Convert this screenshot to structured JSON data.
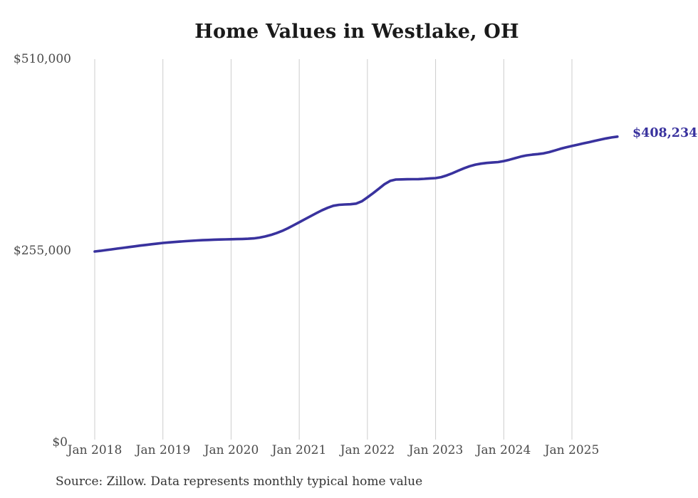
{
  "chart": {
    "title": "Home Values in Westlake, OH",
    "end_label": "$408,234",
    "source": "Source: Zillow. Data represents monthly typical home value",
    "colors": {
      "line": "#39329e",
      "grid": "#cccccc",
      "title_text": "#1a1a1a",
      "axis_text": "#4a4a4a",
      "source_text": "#333333",
      "end_label_text": "#39329e",
      "background": "#ffffff"
    }
  },
  "y_axis": {
    "ticks": [
      "$510,000",
      "$255,000",
      "$0"
    ]
  },
  "x_axis": {
    "ticks": [
      "Jan 2018",
      "Jan 2019",
      "Jan 2020",
      "Jan 2021",
      "Jan 2022",
      "Jan 2023",
      "Jan 2024",
      "Jan 2025"
    ]
  },
  "chart_data": {
    "type": "line",
    "title": "Home Values in Westlake, OH",
    "xlabel": "",
    "ylabel": "",
    "ylim": [
      0,
      510000
    ],
    "yticks": [
      0,
      255000,
      510000
    ],
    "ytick_labels": [
      "$0",
      "$255,000",
      "$510,000"
    ],
    "xtick_labels": [
      "Jan 2018",
      "Jan 2019",
      "Jan 2020",
      "Jan 2021",
      "Jan 2022",
      "Jan 2023",
      "Jan 2024",
      "Jan 2025"
    ],
    "grid": "vertical gridlines at each January, no horizontal gridlines, no axis lines",
    "legend": "none",
    "line_annotation": "$408,234",
    "source": "Source: Zillow. Data represents monthly typical home value",
    "x": [
      "Jan 2018",
      "Feb 2018",
      "Mar 2018",
      "Apr 2018",
      "May 2018",
      "Jun 2018",
      "Jul 2018",
      "Aug 2018",
      "Sep 2018",
      "Oct 2018",
      "Nov 2018",
      "Dec 2018",
      "Jan 2019",
      "Feb 2019",
      "Mar 2019",
      "Apr 2019",
      "May 2019",
      "Jun 2019",
      "Jul 2019",
      "Aug 2019",
      "Sep 2019",
      "Oct 2019",
      "Nov 2019",
      "Dec 2019",
      "Jan 2020",
      "Feb 2020",
      "Mar 2020",
      "Apr 2020",
      "May 2020",
      "Jun 2020",
      "Jul 2020",
      "Aug 2020",
      "Sep 2020",
      "Oct 2020",
      "Nov 2020",
      "Dec 2020",
      "Jan 2021",
      "Feb 2021",
      "Mar 2021",
      "Apr 2021",
      "May 2021",
      "Jun 2021",
      "Jul 2021",
      "Aug 2021",
      "Sep 2021",
      "Oct 2021",
      "Nov 2021",
      "Dec 2021",
      "Jan 2022",
      "Feb 2022",
      "Mar 2022",
      "Apr 2022",
      "May 2022",
      "Jun 2022",
      "Jul 2022",
      "Aug 2022",
      "Sep 2022",
      "Oct 2022",
      "Nov 2022",
      "Dec 2022",
      "Jan 2023",
      "Feb 2023",
      "Mar 2023",
      "Apr 2023",
      "May 2023",
      "Jun 2023",
      "Jul 2023",
      "Aug 2023",
      "Sep 2023",
      "Oct 2023",
      "Nov 2023",
      "Dec 2023",
      "Jan 2024",
      "Feb 2024",
      "Mar 2024",
      "Apr 2024",
      "May 2024",
      "Jun 2024",
      "Jul 2024",
      "Aug 2024",
      "Sep 2024",
      "Oct 2024",
      "Nov 2024",
      "Dec 2024",
      "Jan 2025",
      "Feb 2025",
      "Mar 2025",
      "Apr 2025",
      "May 2025",
      "Jun 2025",
      "Jul 2025",
      "Aug 2025",
      "Sep 2025"
    ],
    "values": [
      254500,
      255400,
      256400,
      257400,
      258400,
      259400,
      260400,
      261400,
      262400,
      263300,
      264200,
      265100,
      266000,
      266600,
      267200,
      267800,
      268300,
      268800,
      269300,
      269700,
      270000,
      270300,
      270500,
      270700,
      270900,
      271100,
      271300,
      271600,
      272100,
      273100,
      274600,
      276600,
      279100,
      282100,
      285600,
      289600,
      293600,
      297700,
      301800,
      305800,
      309600,
      313000,
      315700,
      317000,
      317400,
      317700,
      318600,
      321600,
      327000,
      332500,
      338500,
      344500,
      349000,
      350800,
      351000,
      351200,
      351300,
      351400,
      351800,
      352300,
      352700,
      354000,
      356400,
      359400,
      362700,
      365900,
      368600,
      370700,
      372100,
      373000,
      373600,
      374200,
      375500,
      377300,
      379400,
      381500,
      383100,
      384100,
      384800,
      385800,
      387500,
      389700,
      392000,
      394000,
      395700,
      397400,
      399100,
      400800,
      402500,
      404200,
      405800,
      407100,
      408234
    ]
  }
}
